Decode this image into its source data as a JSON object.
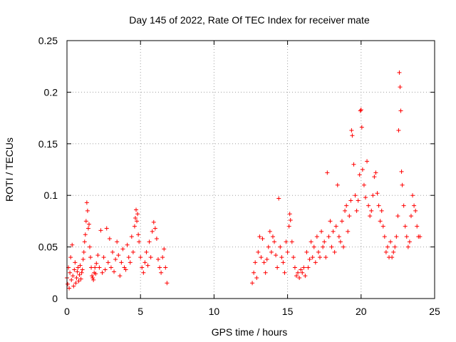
{
  "chart_data": {
    "type": "scatter",
    "title": "Day 145 of 2022, Rate Of TEC Index for receiver mate",
    "xlabel": "GPS time / hours",
    "ylabel": "ROTI / TECUs",
    "xlim": [
      0,
      25
    ],
    "ylim": [
      0,
      0.25
    ],
    "xticks": [
      0,
      5,
      10,
      15,
      20,
      25
    ],
    "xtick_labels": [
      "0",
      "5",
      "10",
      "15",
      "20",
      "25"
    ],
    "yticks": [
      0,
      0.05,
      0.1,
      0.15,
      0.2,
      0.25
    ],
    "ytick_labels": [
      "0",
      "0.05",
      "0.1",
      "0.15",
      "0.2",
      "0.25"
    ],
    "grid": true,
    "marker": "plus",
    "color": "#ff0000",
    "series": [
      {
        "points": [
          [
            0.0,
            0.02
          ],
          [
            0.05,
            0.014
          ],
          [
            0.1,
            0.03
          ],
          [
            0.15,
            0.01
          ],
          [
            0.2,
            0.025
          ],
          [
            0.25,
            0.04
          ],
          [
            0.3,
            0.018
          ],
          [
            0.35,
            0.052
          ],
          [
            0.4,
            0.022
          ],
          [
            0.45,
            0.012
          ],
          [
            0.5,
            0.028
          ],
          [
            0.55,
            0.035
          ],
          [
            0.6,
            0.015
          ],
          [
            0.65,
            0.02
          ],
          [
            0.7,
            0.026
          ],
          [
            0.75,
            0.03
          ],
          [
            0.8,
            0.017
          ],
          [
            0.85,
            0.023
          ],
          [
            0.9,
            0.032
          ],
          [
            0.95,
            0.019
          ],
          [
            1.0,
            0.025
          ],
          [
            1.05,
            0.028
          ],
          [
            1.1,
            0.038
          ],
          [
            1.15,
            0.045
          ],
          [
            1.2,
            0.055
          ],
          [
            1.25,
            0.062
          ],
          [
            1.3,
            0.075
          ],
          [
            1.35,
            0.093
          ],
          [
            1.4,
            0.085
          ],
          [
            1.45,
            0.068
          ],
          [
            1.5,
            0.072
          ],
          [
            1.55,
            0.05
          ],
          [
            1.6,
            0.04
          ],
          [
            1.65,
            0.03
          ],
          [
            1.7,
            0.022
          ],
          [
            1.75,
            0.02
          ],
          [
            1.8,
            0.018
          ],
          [
            1.85,
            0.025
          ],
          [
            1.9,
            0.03
          ],
          [
            1.95,
            0.024
          ],
          [
            2.0,
            0.034
          ],
          [
            2.1,
            0.042
          ],
          [
            2.2,
            0.03
          ],
          [
            2.3,
            0.066
          ],
          [
            2.4,
            0.025
          ],
          [
            2.5,
            0.04
          ],
          [
            2.6,
            0.028
          ],
          [
            2.7,
            0.068
          ],
          [
            2.8,
            0.035
          ],
          [
            2.9,
            0.058
          ],
          [
            3.0,
            0.03
          ],
          [
            3.1,
            0.045
          ],
          [
            3.2,
            0.026
          ],
          [
            3.3,
            0.038
          ],
          [
            3.4,
            0.055
          ],
          [
            3.5,
            0.042
          ],
          [
            3.6,
            0.022
          ],
          [
            3.7,
            0.035
          ],
          [
            3.8,
            0.048
          ],
          [
            3.9,
            0.03
          ],
          [
            4.0,
            0.028
          ],
          [
            4.1,
            0.052
          ],
          [
            4.2,
            0.04
          ],
          [
            4.3,
            0.035
          ],
          [
            4.4,
            0.06
          ],
          [
            4.5,
            0.045
          ],
          [
            4.6,
            0.07
          ],
          [
            4.65,
            0.078
          ],
          [
            4.7,
            0.086
          ],
          [
            4.75,
            0.075
          ],
          [
            4.8,
            0.082
          ],
          [
            4.85,
            0.062
          ],
          [
            4.9,
            0.055
          ],
          [
            5.0,
            0.04
          ],
          [
            5.1,
            0.03
          ],
          [
            5.2,
            0.025
          ],
          [
            5.3,
            0.035
          ],
          [
            5.4,
            0.045
          ],
          [
            5.5,
            0.032
          ],
          [
            5.6,
            0.055
          ],
          [
            5.7,
            0.04
          ],
          [
            5.8,
            0.065
          ],
          [
            5.9,
            0.074
          ],
          [
            6.0,
            0.068
          ],
          [
            6.1,
            0.058
          ],
          [
            6.2,
            0.038
          ],
          [
            6.3,
            0.03
          ],
          [
            6.4,
            0.025
          ],
          [
            6.5,
            0.04
          ],
          [
            6.6,
            0.048
          ],
          [
            6.7,
            0.03
          ],
          [
            6.8,
            0.015
          ],
          [
            12.6,
            0.015
          ],
          [
            12.7,
            0.025
          ],
          [
            12.8,
            0.035
          ],
          [
            12.9,
            0.02
          ],
          [
            13.0,
            0.045
          ],
          [
            13.1,
            0.06
          ],
          [
            13.2,
            0.04
          ],
          [
            13.3,
            0.058
          ],
          [
            13.4,
            0.035
          ],
          [
            13.5,
            0.025
          ],
          [
            13.6,
            0.038
          ],
          [
            13.7,
            0.05
          ],
          [
            13.8,
            0.065
          ],
          [
            13.9,
            0.045
          ],
          [
            14.0,
            0.06
          ],
          [
            14.1,
            0.055
          ],
          [
            14.2,
            0.042
          ],
          [
            14.3,
            0.03
          ],
          [
            14.4,
            0.097
          ],
          [
            14.5,
            0.05
          ],
          [
            14.6,
            0.04
          ],
          [
            14.7,
            0.035
          ],
          [
            14.8,
            0.025
          ],
          [
            14.9,
            0.055
          ],
          [
            15.0,
            0.045
          ],
          [
            15.1,
            0.07
          ],
          [
            15.15,
            0.082
          ],
          [
            15.2,
            0.076
          ],
          [
            15.3,
            0.055
          ],
          [
            15.4,
            0.04
          ],
          [
            15.5,
            0.03
          ],
          [
            15.6,
            0.022
          ],
          [
            15.7,
            0.025
          ],
          [
            15.8,
            0.02
          ],
          [
            15.9,
            0.028
          ],
          [
            16.0,
            0.025
          ],
          [
            16.1,
            0.03
          ],
          [
            16.2,
            0.022
          ],
          [
            16.3,
            0.045
          ],
          [
            16.4,
            0.03
          ],
          [
            16.5,
            0.038
          ],
          [
            16.6,
            0.055
          ],
          [
            16.7,
            0.04
          ],
          [
            16.8,
            0.05
          ],
          [
            16.9,
            0.035
          ],
          [
            17.0,
            0.06
          ],
          [
            17.1,
            0.045
          ],
          [
            17.2,
            0.04
          ],
          [
            17.3,
            0.065
          ],
          [
            17.4,
            0.05
          ],
          [
            17.5,
            0.055
          ],
          [
            17.6,
            0.04
          ],
          [
            17.7,
            0.122
          ],
          [
            17.8,
            0.06
          ],
          [
            17.9,
            0.075
          ],
          [
            18.0,
            0.05
          ],
          [
            18.1,
            0.065
          ],
          [
            18.2,
            0.045
          ],
          [
            18.3,
            0.07
          ],
          [
            18.4,
            0.11
          ],
          [
            18.5,
            0.06
          ],
          [
            18.6,
            0.055
          ],
          [
            18.7,
            0.075
          ],
          [
            18.8,
            0.05
          ],
          [
            18.9,
            0.085
          ],
          [
            19.0,
            0.09
          ],
          [
            19.1,
            0.065
          ],
          [
            19.2,
            0.08
          ],
          [
            19.3,
            0.095
          ],
          [
            19.35,
            0.163
          ],
          [
            19.4,
            0.158
          ],
          [
            19.5,
            0.13
          ],
          [
            19.6,
            0.1
          ],
          [
            19.7,
            0.085
          ],
          [
            19.8,
            0.095
          ],
          [
            19.9,
            0.12
          ],
          [
            19.95,
            0.182
          ],
          [
            20.0,
            0.183
          ],
          [
            20.05,
            0.166
          ],
          [
            20.1,
            0.125
          ],
          [
            20.2,
            0.11
          ],
          [
            20.3,
            0.098
          ],
          [
            20.4,
            0.133
          ],
          [
            20.5,
            0.09
          ],
          [
            20.6,
            0.08
          ],
          [
            20.7,
            0.085
          ],
          [
            20.8,
            0.1
          ],
          [
            20.9,
            0.118
          ],
          [
            21.0,
            0.122
          ],
          [
            21.1,
            0.102
          ],
          [
            21.2,
            0.09
          ],
          [
            21.3,
            0.075
          ],
          [
            21.4,
            0.085
          ],
          [
            21.5,
            0.07
          ],
          [
            21.6,
            0.06
          ],
          [
            21.7,
            0.045
          ],
          [
            21.8,
            0.05
          ],
          [
            21.9,
            0.04
          ],
          [
            22.0,
            0.055
          ],
          [
            22.1,
            0.04
          ],
          [
            22.2,
            0.045
          ],
          [
            22.3,
            0.05
          ],
          [
            22.4,
            0.06
          ],
          [
            22.5,
            0.08
          ],
          [
            22.55,
            0.163
          ],
          [
            22.6,
            0.219
          ],
          [
            22.65,
            0.205
          ],
          [
            22.7,
            0.182
          ],
          [
            22.75,
            0.123
          ],
          [
            22.8,
            0.11
          ],
          [
            22.9,
            0.09
          ],
          [
            23.0,
            0.07
          ],
          [
            23.1,
            0.06
          ],
          [
            23.2,
            0.05
          ],
          [
            23.3,
            0.055
          ],
          [
            23.4,
            0.08
          ],
          [
            23.5,
            0.1
          ],
          [
            23.6,
            0.09
          ],
          [
            23.7,
            0.085
          ],
          [
            23.8,
            0.07
          ],
          [
            23.9,
            0.06
          ],
          [
            24.0,
            0.06
          ]
        ]
      }
    ]
  }
}
